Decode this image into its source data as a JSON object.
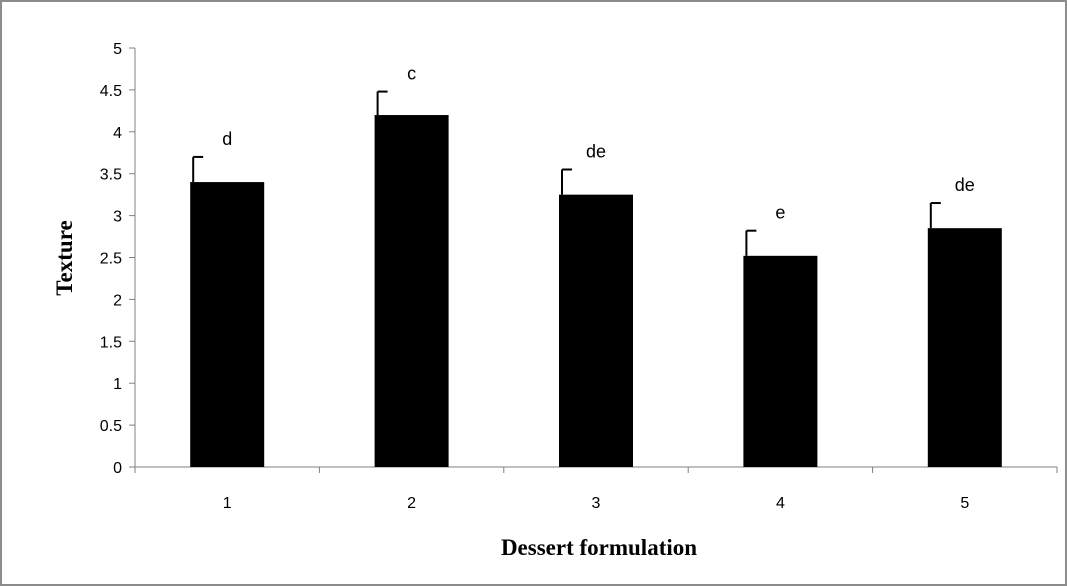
{
  "chart_data": {
    "type": "bar",
    "title": "",
    "xlabel": "Dessert formulation",
    "ylabel": "Texture",
    "categories": [
      "1",
      "2",
      "3",
      "4",
      "5"
    ],
    "values": [
      3.4,
      4.2,
      3.25,
      2.52,
      2.85
    ],
    "error": [
      0.3,
      0.28,
      0.3,
      0.3,
      0.3
    ],
    "annotations": [
      "d",
      "c",
      "de",
      "e",
      "de"
    ],
    "ylim": [
      0,
      5
    ],
    "yticks": [
      "0",
      "0.5",
      "1",
      "1.5",
      "2",
      "2.5",
      "3",
      "3.5",
      "4",
      "4.5",
      "5"
    ],
    "grid": false,
    "legend": "none",
    "bar_color": "#000000"
  }
}
